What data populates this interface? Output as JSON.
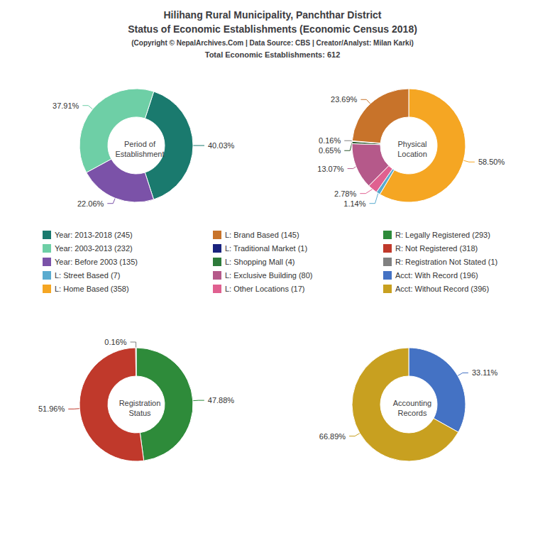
{
  "title": "Hilihang Rural Municipality, Panchthar District\nStatus of Economic Establishments (Economic Census 2018)",
  "subtitle": "(Copyright © NepalArchives.Com | Data Source: CBS | Creator/Analyst: Milan Karki)",
  "annotations": [
    "Total Economic Establishments: 612"
  ],
  "legend_items": [
    {
      "label": "Year: 2013-2018 (245)",
      "color": "#1a7a6e"
    },
    {
      "label": "Year: 2003-2013 (232)",
      "color": "#6ecfa6"
    },
    {
      "label": "Year: Before 2003 (135)",
      "color": "#7b52a8"
    },
    {
      "label": "L: Street Based (7)",
      "color": "#5aabcf"
    },
    {
      "label": "L: Home Based (358)",
      "color": "#f5a623"
    },
    {
      "label": "L: Brand Based (145)",
      "color": "#c8732a"
    },
    {
      "label": "L: Traditional Market (1)",
      "color": "#1a237e"
    },
    {
      "label": "L: Shopping Mall (4)",
      "color": "#2d7a3a"
    },
    {
      "label": "L: Exclusive Building (80)",
      "color": "#b5598a"
    },
    {
      "label": "L: Other Locations (17)",
      "color": "#e06090"
    },
    {
      "label": "R: Legally Registered (293)",
      "color": "#2e8b3a"
    },
    {
      "label": "R: Not Registered (318)",
      "color": "#c0392b"
    },
    {
      "label": "R: Registration Not Stated (1)",
      "color": "#808080"
    },
    {
      "label": "Acct: With Record (196)",
      "color": "#4472c4"
    },
    {
      "label": "Acct: Without Record (396)",
      "color": "#c8a020"
    }
  ],
  "chart_data": [
    {
      "type": "pie",
      "title": "Period of\nEstablishment",
      "values": [
        40.03,
        22.06,
        37.91
      ],
      "value_labels": [
        "40.03%",
        "22.06%",
        "37.91%"
      ],
      "colors": [
        "#1a7a6e",
        "#7b52a8",
        "#6ecfa6"
      ],
      "data_labels": true
    },
    {
      "type": "pie",
      "title": "Physical\nLocation",
      "values": [
        58.5,
        1.14,
        2.78,
        13.07,
        0.65,
        0.16,
        23.69
      ],
      "value_labels": [
        "58.50%",
        "1.14%",
        "2.78%",
        "13.07%",
        "0.65%",
        "0.16%",
        "23.69%"
      ],
      "colors": [
        "#f5a623",
        "#5aabcf",
        "#e06090",
        "#b5598a",
        "#2d572c",
        "#808080",
        "#c8732a"
      ],
      "data_labels": true
    },
    {
      "type": "pie",
      "title": "Registration\nStatus",
      "values": [
        47.88,
        51.96,
        0.16
      ],
      "value_labels": [
        "47.88%",
        "51.96%",
        "0.16%"
      ],
      "colors": [
        "#2e8b3a",
        "#c0392b",
        "#808080"
      ],
      "data_labels": true
    },
    {
      "type": "pie",
      "title": "Accounting\nRecords",
      "values": [
        33.11,
        66.89
      ],
      "value_labels": [
        "33.11%",
        "66.89%"
      ],
      "colors": [
        "#4472c4",
        "#c8a020"
      ],
      "data_labels": true
    }
  ]
}
